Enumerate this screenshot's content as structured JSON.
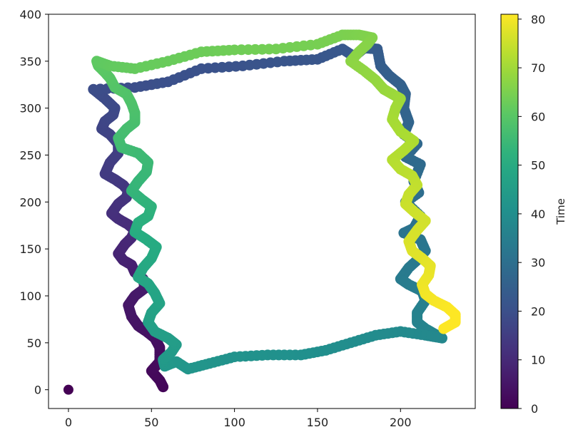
{
  "chart_data": {
    "type": "scatter",
    "title": "",
    "xlabel": "",
    "ylabel": "",
    "xlim": [
      -12,
      245
    ],
    "ylim": [
      -20,
      400
    ],
    "x_ticks": [
      "0",
      "50",
      "100",
      "150",
      "200"
    ],
    "y_ticks": [
      "0",
      "50",
      "100",
      "150",
      "200",
      "250",
      "300",
      "350",
      "400"
    ],
    "grid": false,
    "colormap": "viridis",
    "colorbar": {
      "label": "Time",
      "range": [
        0,
        81
      ],
      "ticks": [
        "0",
        "10",
        "20",
        "30",
        "40",
        "50",
        "60",
        "70",
        "80"
      ]
    },
    "time_range": [
      0,
      81
    ],
    "series": [
      {
        "points": [
          [
            0,
            0
          ],
          [
            57,
            3
          ],
          [
            55,
            10
          ],
          [
            50,
            20
          ],
          [
            55,
            30
          ],
          [
            55,
            45
          ],
          [
            52,
            55
          ],
          [
            47,
            62
          ],
          [
            42,
            68
          ],
          [
            38,
            78
          ],
          [
            36,
            90
          ],
          [
            40,
            100
          ],
          [
            46,
            108
          ],
          [
            45,
            118
          ],
          [
            40,
            125
          ],
          [
            38,
            133
          ],
          [
            33,
            138
          ],
          [
            30,
            145
          ],
          [
            34,
            155
          ],
          [
            38,
            162
          ],
          [
            40,
            170
          ],
          [
            36,
            176
          ],
          [
            30,
            182
          ],
          [
            26,
            188
          ],
          [
            30,
            198
          ],
          [
            35,
            205
          ],
          [
            36,
            212
          ],
          [
            33,
            218
          ],
          [
            28,
            224
          ],
          [
            22,
            230
          ],
          [
            25,
            242
          ],
          [
            30,
            252
          ],
          [
            30,
            262
          ],
          [
            25,
            272
          ],
          [
            20,
            278
          ],
          [
            22,
            286
          ],
          [
            27,
            293
          ],
          [
            28,
            300
          ],
          [
            22,
            310
          ],
          [
            15,
            320
          ],
          [
            40,
            322
          ],
          [
            60,
            328
          ],
          [
            80,
            342
          ],
          [
            105,
            345
          ],
          [
            130,
            350
          ],
          [
            150,
            352
          ],
          [
            165,
            363
          ],
          [
            172,
            355
          ],
          [
            178,
            364
          ],
          [
            186,
            363
          ],
          [
            188,
            345
          ],
          [
            193,
            335
          ],
          [
            200,
            325
          ],
          [
            203,
            315
          ],
          [
            202,
            300
          ],
          [
            205,
            285
          ],
          [
            202,
            272
          ],
          [
            210,
            262
          ],
          [
            203,
            248
          ],
          [
            212,
            240
          ],
          [
            208,
            222
          ],
          [
            211,
            210
          ],
          [
            203,
            200
          ],
          [
            212,
            185
          ],
          [
            208,
            172
          ],
          [
            202,
            167
          ],
          [
            212,
            160
          ],
          [
            215,
            148
          ],
          [
            210,
            138
          ],
          [
            205,
            130
          ],
          [
            200,
            118
          ],
          [
            205,
            112
          ],
          [
            213,
            105
          ],
          [
            215,
            95
          ],
          [
            210,
            82
          ],
          [
            210,
            72
          ],
          [
            215,
            65
          ],
          [
            220,
            60
          ],
          [
            225,
            55
          ],
          [
            215,
            58
          ],
          [
            200,
            62
          ],
          [
            185,
            58
          ],
          [
            170,
            50
          ],
          [
            155,
            42
          ],
          [
            140,
            37
          ],
          [
            120,
            37
          ],
          [
            100,
            35
          ],
          [
            85,
            28
          ],
          [
            72,
            22
          ],
          [
            65,
            30
          ],
          [
            58,
            25
          ],
          [
            57,
            32
          ],
          [
            62,
            40
          ],
          [
            65,
            48
          ],
          [
            60,
            55
          ],
          [
            52,
            62
          ],
          [
            48,
            72
          ],
          [
            50,
            82
          ],
          [
            55,
            92
          ],
          [
            52,
            103
          ],
          [
            48,
            113
          ],
          [
            42,
            120
          ],
          [
            45,
            130
          ],
          [
            50,
            140
          ],
          [
            53,
            152
          ],
          [
            47,
            160
          ],
          [
            40,
            168
          ],
          [
            42,
            178
          ],
          [
            48,
            185
          ],
          [
            50,
            195
          ],
          [
            44,
            203
          ],
          [
            38,
            212
          ],
          [
            42,
            222
          ],
          [
            47,
            232
          ],
          [
            48,
            242
          ],
          [
            42,
            252
          ],
          [
            32,
            258
          ],
          [
            30,
            268
          ],
          [
            35,
            278
          ],
          [
            40,
            285
          ],
          [
            40,
            295
          ],
          [
            38,
            305
          ],
          [
            35,
            315
          ],
          [
            28,
            322
          ],
          [
            25,
            332
          ],
          [
            22,
            338
          ],
          [
            18,
            345
          ],
          [
            17,
            350
          ],
          [
            25,
            345
          ],
          [
            40,
            342
          ],
          [
            60,
            350
          ],
          [
            80,
            360
          ],
          [
            100,
            362
          ],
          [
            125,
            363
          ],
          [
            150,
            368
          ],
          [
            165,
            378
          ],
          [
            175,
            378
          ],
          [
            183,
            375
          ],
          [
            180,
            368
          ],
          [
            175,
            360
          ],
          [
            170,
            350
          ],
          [
            178,
            340
          ],
          [
            185,
            330
          ],
          [
            190,
            320
          ],
          [
            195,
            315
          ],
          [
            200,
            310
          ],
          [
            197,
            300
          ],
          [
            195,
            288
          ],
          [
            200,
            275
          ],
          [
            208,
            265
          ],
          [
            202,
            255
          ],
          [
            195,
            245
          ],
          [
            200,
            235
          ],
          [
            207,
            228
          ],
          [
            210,
            218
          ],
          [
            205,
            208
          ],
          [
            203,
            198
          ],
          [
            208,
            190
          ],
          [
            215,
            180
          ],
          [
            210,
            170
          ],
          [
            205,
            158
          ],
          [
            207,
            148
          ],
          [
            213,
            140
          ],
          [
            218,
            132
          ],
          [
            217,
            122
          ],
          [
            213,
            112
          ],
          [
            215,
            102
          ],
          [
            220,
            95
          ],
          [
            228,
            88
          ],
          [
            233,
            80
          ],
          [
            233,
            72
          ],
          [
            226,
            65
          ]
        ]
      }
    ]
  }
}
